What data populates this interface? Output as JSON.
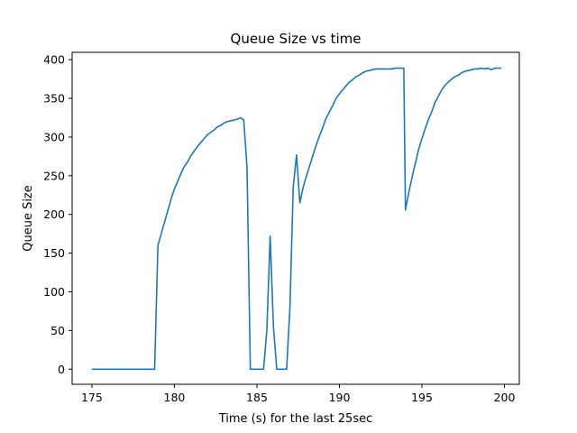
{
  "chart_data": {
    "type": "line",
    "title": "Queue Size vs time",
    "xlabel": "Time (s) for the last 25sec",
    "ylabel": "Queue Size",
    "xlim": [
      173.8,
      200.9
    ],
    "ylim": [
      -19.5,
      409.5
    ],
    "xticks": [
      175,
      180,
      185,
      190,
      195,
      200
    ],
    "yticks": [
      0,
      50,
      100,
      150,
      200,
      250,
      300,
      350,
      400
    ],
    "xtick_labels": [
      "175",
      "180",
      "185",
      "190",
      "195",
      "200"
    ],
    "ytick_labels": [
      "0",
      "50",
      "100",
      "150",
      "200",
      "250",
      "300",
      "350",
      "400"
    ],
    "grid": false,
    "line_color": "#1f77b4",
    "series": [
      {
        "x": [
          175.0,
          175.5,
          176.0,
          176.5,
          177.0,
          177.5,
          178.0,
          178.5,
          178.8,
          179.0,
          179.2,
          179.4,
          179.6,
          179.8,
          180.0,
          180.2,
          180.4,
          180.6,
          180.8,
          181.0,
          181.2,
          181.4,
          181.6,
          181.8,
          182.0,
          182.2,
          182.4,
          182.6,
          182.8,
          183.0,
          183.2,
          183.4,
          183.6,
          183.8,
          184.0,
          184.2,
          184.4,
          184.6,
          185.0,
          185.4,
          185.6,
          185.8,
          186.0,
          186.2,
          186.5,
          186.8,
          187.0,
          187.2,
          187.4,
          187.6,
          187.8,
          188.0,
          188.2,
          188.4,
          188.6,
          188.8,
          189.0,
          189.2,
          189.4,
          189.6,
          189.8,
          190.0,
          190.2,
          190.4,
          190.6,
          190.8,
          191.0,
          191.2,
          191.4,
          191.6,
          191.8,
          192.0,
          192.2,
          192.4,
          192.6,
          192.8,
          193.0,
          193.2,
          193.4,
          193.6,
          193.9,
          194.0,
          194.2,
          194.4,
          194.6,
          194.8,
          195.0,
          195.2,
          195.4,
          195.6,
          195.8,
          196.0,
          196.2,
          196.4,
          196.6,
          196.8,
          197.0,
          197.2,
          197.4,
          197.6,
          197.8,
          198.0,
          198.2,
          198.4,
          198.6,
          198.8,
          199.0,
          199.2,
          199.4,
          199.6,
          199.8
        ],
        "y": [
          0,
          0,
          0,
          0,
          0,
          0,
          0,
          0,
          0,
          160,
          175,
          190,
          205,
          220,
          233,
          243,
          253,
          262,
          268,
          276,
          282,
          288,
          293,
          298,
          303,
          306,
          309,
          313,
          315,
          318,
          320,
          321,
          322,
          323,
          325,
          322,
          260,
          0,
          0,
          0,
          50,
          172,
          55,
          0,
          0,
          0,
          80,
          235,
          277,
          215,
          235,
          250,
          263,
          277,
          290,
          302,
          313,
          325,
          333,
          341,
          350,
          356,
          361,
          366,
          371,
          374,
          378,
          380,
          383,
          385,
          386,
          387,
          388,
          388,
          388,
          388,
          388,
          388,
          389,
          389,
          389,
          206,
          228,
          248,
          266,
          284,
          298,
          311,
          323,
          333,
          345,
          353,
          361,
          367,
          371,
          375,
          378,
          380,
          383,
          385,
          386,
          387,
          388,
          388,
          389,
          388,
          389,
          387,
          389,
          389,
          389
        ]
      }
    ]
  }
}
